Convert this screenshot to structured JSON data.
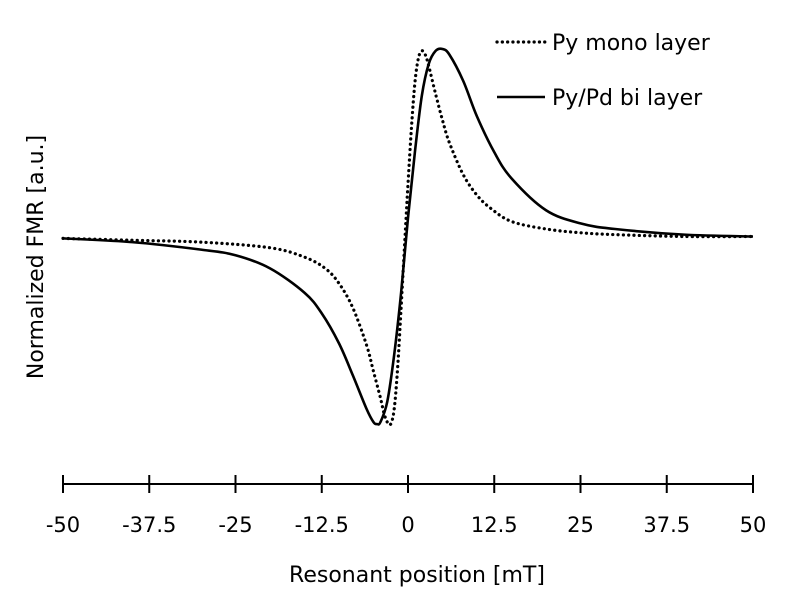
{
  "chart_data": {
    "type": "line",
    "xlabel": "Resonant position [mT]",
    "ylabel": "Normalized FMR [a.u.]",
    "xlim": [
      -50,
      50
    ],
    "ylim": [
      -1,
      1
    ],
    "xticks": [
      -50,
      -37.5,
      -25,
      -12.5,
      0,
      12.5,
      25,
      37.5,
      50
    ],
    "xtick_labels": [
      "-50",
      "-37.5",
      "-25",
      "-12.5",
      "0",
      "12.5",
      "25",
      "37.5",
      "50"
    ],
    "grid": false,
    "legend_position": "top-right",
    "series": [
      {
        "name": "Py mono layer",
        "style": "dotted",
        "color": "#000000",
        "x": [
          -50,
          -40,
          -30,
          -20,
          -15,
          -12,
          -10,
          -8,
          -6,
          -5,
          -4,
          -3.5,
          -3,
          -2.5,
          -2,
          -1.5,
          -1,
          -0.5,
          0,
          0.5,
          1,
          1.5,
          2,
          2.5,
          3,
          4,
          5,
          6,
          8,
          10,
          12,
          15,
          20,
          25,
          30,
          40,
          50
        ],
        "y": [
          -0.01,
          -0.02,
          -0.03,
          -0.06,
          -0.11,
          -0.17,
          -0.25,
          -0.38,
          -0.58,
          -0.72,
          -0.86,
          -0.94,
          -0.99,
          -1.0,
          -0.92,
          -0.7,
          -0.38,
          -0.05,
          0.28,
          0.58,
          0.82,
          0.95,
          0.99,
          0.97,
          0.91,
          0.76,
          0.62,
          0.5,
          0.33,
          0.22,
          0.15,
          0.08,
          0.04,
          0.02,
          0.01,
          0.0,
          0.0
        ]
      },
      {
        "name": "Py/Pd bi layer",
        "style": "solid",
        "color": "#000000",
        "x": [
          -50,
          -40,
          -30,
          -25,
          -20,
          -15,
          -12.5,
          -10,
          -8,
          -6,
          -5,
          -4.5,
          -4,
          -3,
          -2,
          -1,
          0,
          1,
          2,
          3,
          4,
          5,
          6,
          8,
          10,
          12.5,
          15,
          20,
          25,
          30,
          40,
          50
        ],
        "y": [
          -0.01,
          -0.03,
          -0.07,
          -0.1,
          -0.17,
          -0.3,
          -0.41,
          -0.57,
          -0.74,
          -0.92,
          -0.99,
          -1.0,
          -0.99,
          -0.88,
          -0.63,
          -0.3,
          0.1,
          0.45,
          0.75,
          0.92,
          0.99,
          1.0,
          0.97,
          0.83,
          0.64,
          0.45,
          0.31,
          0.14,
          0.07,
          0.04,
          0.01,
          0.0
        ]
      }
    ]
  }
}
